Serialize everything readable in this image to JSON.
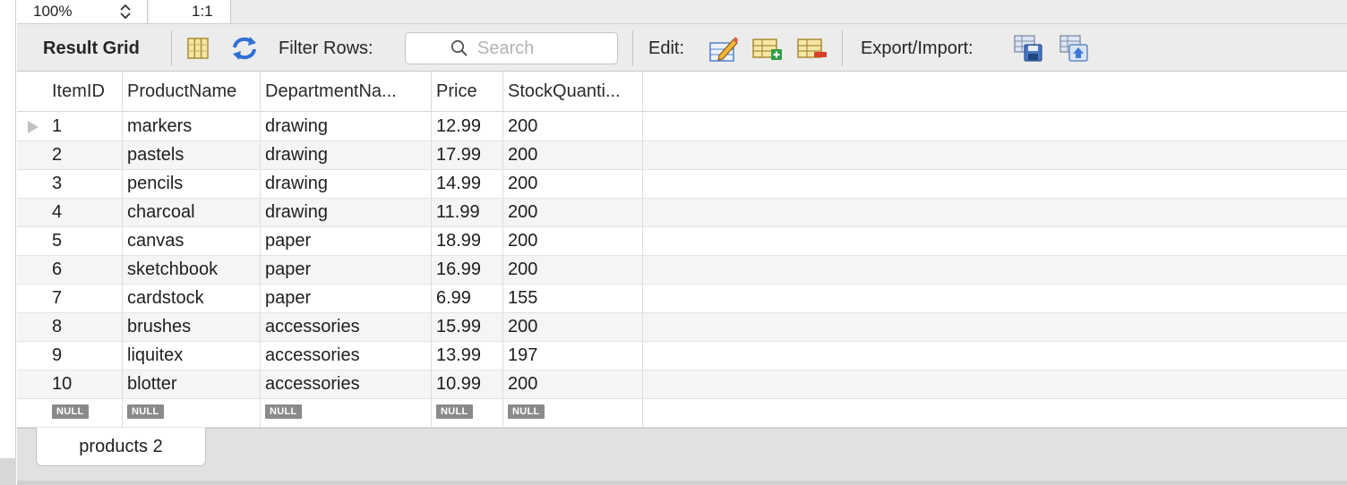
{
  "zoom": {
    "value": "100%",
    "ratio": "1:1"
  },
  "toolbar": {
    "title": "Result Grid",
    "filter_label": "Filter Rows:",
    "search_placeholder": "Search",
    "edit_label": "Edit:",
    "export_label": "Export/Import:"
  },
  "grid": {
    "columns": [
      "ItemID",
      "ProductName",
      "DepartmentNa...",
      "Price",
      "StockQuanti..."
    ],
    "rows": [
      [
        "1",
        "markers",
        "drawing",
        "12.99",
        "200"
      ],
      [
        "2",
        "pastels",
        "drawing",
        "17.99",
        "200"
      ],
      [
        "3",
        "pencils",
        "drawing",
        "14.99",
        "200"
      ],
      [
        "4",
        "charcoal",
        "drawing",
        "11.99",
        "200"
      ],
      [
        "5",
        "canvas",
        "paper",
        "18.99",
        "200"
      ],
      [
        "6",
        "sketchbook",
        "paper",
        "16.99",
        "200"
      ],
      [
        "7",
        "cardstock",
        "paper",
        "6.99",
        "155"
      ],
      [
        "8",
        "brushes",
        "accessories",
        "15.99",
        "200"
      ],
      [
        "9",
        "liquitex",
        "accessories",
        "13.99",
        "197"
      ],
      [
        "10",
        "blotter",
        "accessories",
        "10.99",
        "200"
      ]
    ],
    "null_label": "NULL"
  },
  "tabs": [
    {
      "label": "products 2"
    }
  ],
  "icons": {
    "grid_toggle": "column-grid-icon",
    "refresh": "refresh-arrows-icon",
    "search": "search-icon",
    "edit_cell": "edit-pencil-icon",
    "add_row": "add-row-icon",
    "delete_row": "delete-row-icon",
    "export": "export-save-icon",
    "import": "import-icon"
  },
  "colors": {
    "toolbar_bg": "#ececec",
    "row_alt": "#f5f5f5",
    "null_badge": "#8a8a8a",
    "accent_blue": "#2f6fd6"
  }
}
